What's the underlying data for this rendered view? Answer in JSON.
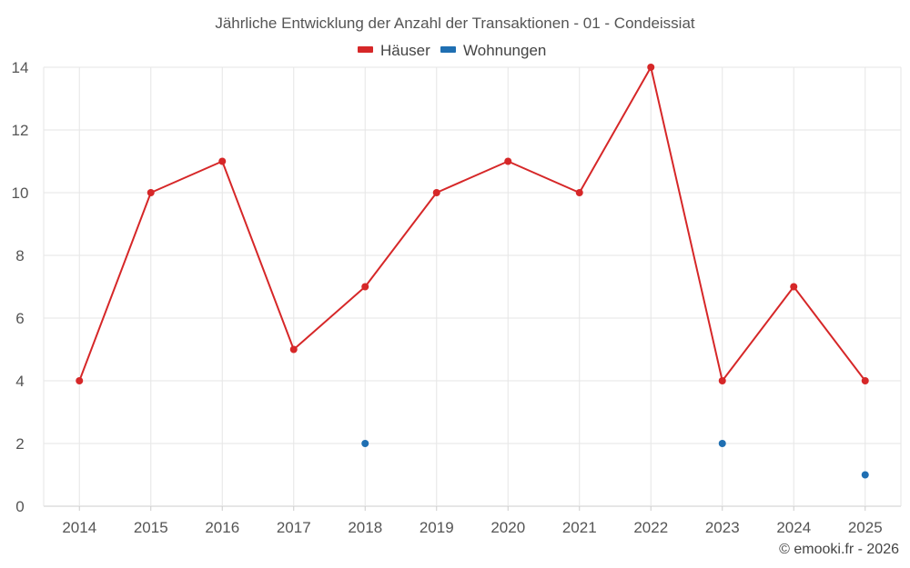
{
  "chart_data": {
    "type": "line",
    "title": "Jährliche Entwicklung der Anzahl der Transaktionen - 01 - Condeissiat",
    "categories": [
      "2014",
      "2015",
      "2016",
      "2017",
      "2018",
      "2019",
      "2020",
      "2021",
      "2022",
      "2023",
      "2024",
      "2025"
    ],
    "series": [
      {
        "name": "Häuser",
        "color": "#d62728",
        "values": [
          4,
          10,
          11,
          5,
          7,
          10,
          11,
          10,
          14,
          4,
          7,
          4
        ],
        "style": "line-with-markers"
      },
      {
        "name": "Wohnungen",
        "color": "#1f6fb2",
        "values": [
          null,
          null,
          null,
          null,
          2,
          null,
          null,
          null,
          null,
          2,
          null,
          1
        ],
        "style": "markers"
      }
    ],
    "ylim": [
      0,
      14
    ],
    "yticks": [
      "0",
      "2",
      "4",
      "6",
      "8",
      "10",
      "12",
      "14"
    ],
    "xlabel": "",
    "ylabel": "",
    "grid": true,
    "legend_position": "top-center"
  },
  "credit": "© emooki.fr - 2026"
}
